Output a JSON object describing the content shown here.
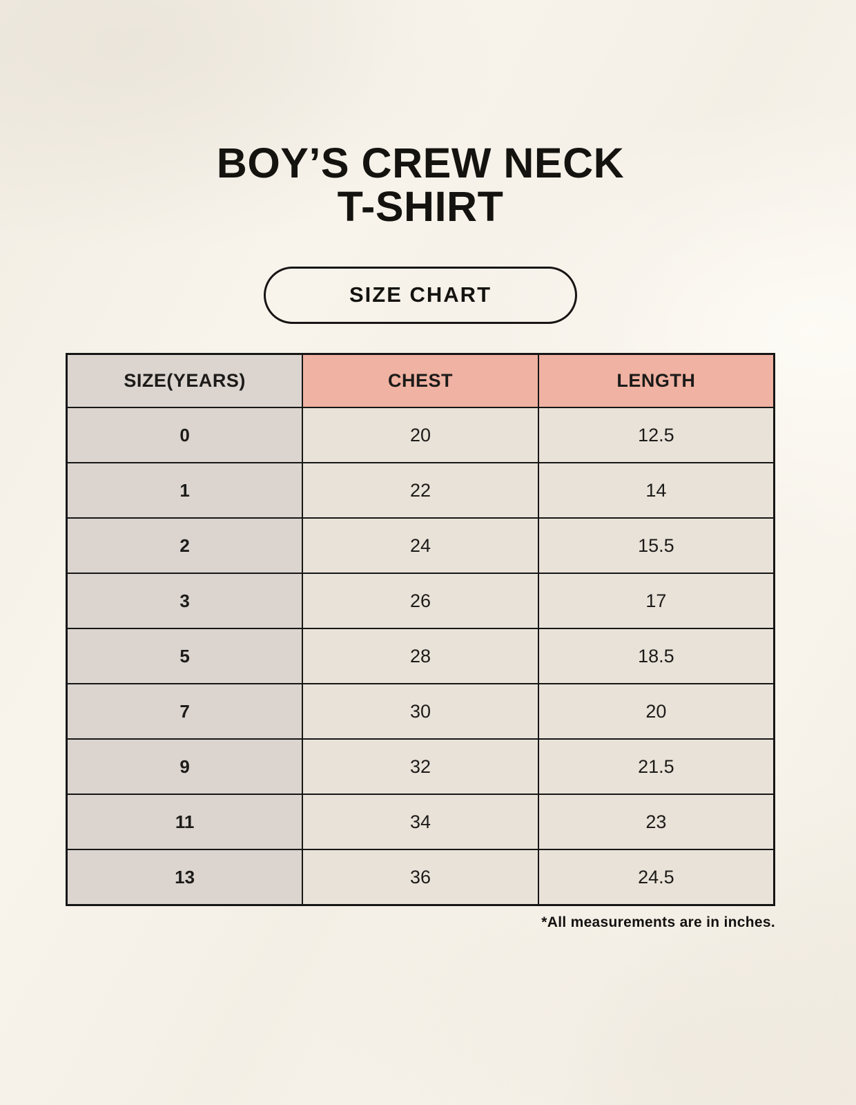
{
  "title": {
    "line1": "BOY’S CREW NECK",
    "line2": "T-SHIRT"
  },
  "badge": {
    "label": "SIZE CHART"
  },
  "table": {
    "headers": [
      "SIZE(YEARS)",
      "CHEST",
      "LENGTH"
    ],
    "rows": [
      [
        "0",
        "20",
        "12.5"
      ],
      [
        "1",
        "22",
        "14"
      ],
      [
        "2",
        "24",
        "15.5"
      ],
      [
        "3",
        "26",
        "17"
      ],
      [
        "5",
        "28",
        "18.5"
      ],
      [
        "7",
        "30",
        "20"
      ],
      [
        "9",
        "32",
        "21.5"
      ],
      [
        "11",
        "34",
        "23"
      ],
      [
        "13",
        "36",
        "24.5"
      ]
    ]
  },
  "footnote": "*All measurements are in inches.",
  "colors": {
    "background": "#f6f2ea",
    "size_column": "#dbd4cf",
    "header_accent": "#f0b2a2",
    "data_cell": "#e9e2d8",
    "table_border": "#161616",
    "text": "#1c1b19"
  }
}
